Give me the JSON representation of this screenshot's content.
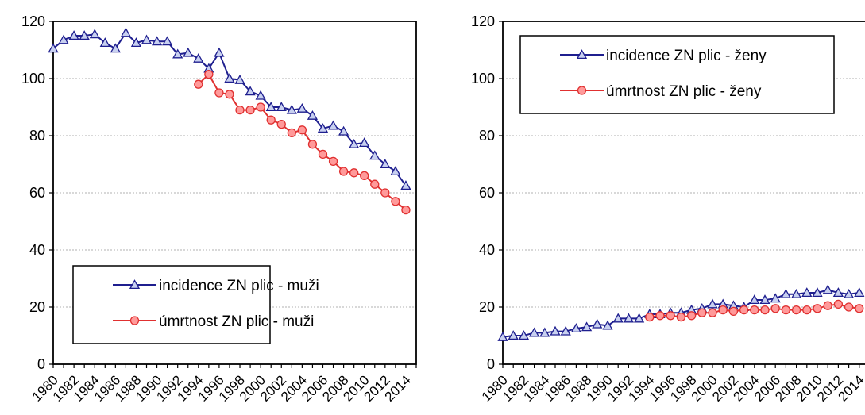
{
  "chart_data": [
    {
      "type": "line",
      "title": "",
      "xlabel": "",
      "ylabel": "",
      "ylim": [
        0,
        120
      ],
      "yticks": [
        0,
        20,
        40,
        60,
        80,
        100,
        120
      ],
      "xlim": [
        1980,
        2015
      ],
      "xtick_labels": [
        "1980",
        "1982",
        "1984",
        "1986",
        "1988",
        "1990",
        "1992",
        "1994",
        "1996",
        "1998",
        "2000",
        "2002",
        "2004",
        "2006",
        "2008",
        "2010",
        "2012",
        "2014"
      ],
      "grid": "horizontal",
      "legend_position": "bottom-center",
      "series": [
        {
          "name": "incidence ZN plic - muži",
          "color": "#1f1f8f",
          "marker": "triangle",
          "x": [
            1980,
            1981,
            1982,
            1983,
            1984,
            1985,
            1986,
            1987,
            1988,
            1989,
            1990,
            1991,
            1992,
            1993,
            1994,
            1995,
            1996,
            1997,
            1998,
            1999,
            2000,
            2001,
            2002,
            2003,
            2004,
            2005,
            2006,
            2007,
            2008,
            2009,
            2010,
            2011,
            2012,
            2013,
            2014
          ],
          "values": [
            110.5,
            113.5,
            115,
            115,
            115.5,
            112.5,
            110.5,
            116,
            112.5,
            113.5,
            113,
            113,
            108.5,
            109,
            107,
            103.5,
            109,
            100,
            99.5,
            95.5,
            94,
            90,
            90,
            89,
            89.5,
            87,
            82.5,
            83.5,
            81.5,
            77,
            77.5,
            73,
            70,
            67.5,
            62.5
          ]
        },
        {
          "name": "úmrtnost ZN plic - muži",
          "color": "#e03030",
          "marker": "circle",
          "x": [
            1994,
            1995,
            1996,
            1997,
            1998,
            1999,
            2000,
            2001,
            2002,
            2003,
            2004,
            2005,
            2006,
            2007,
            2008,
            2009,
            2010,
            2011,
            2012,
            2013,
            2014
          ],
          "values": [
            98,
            101.5,
            95,
            94.5,
            89,
            89,
            90,
            85.5,
            84,
            81,
            82,
            77,
            73.5,
            71,
            67.5,
            67,
            66,
            63,
            60,
            57,
            54
          ]
        }
      ]
    },
    {
      "type": "line",
      "title": "",
      "xlabel": "",
      "ylabel": "",
      "ylim": [
        0,
        120
      ],
      "yticks": [
        0,
        20,
        40,
        60,
        80,
        100,
        120
      ],
      "xlim": [
        1980,
        2015
      ],
      "xtick_labels": [
        "1980",
        "1982",
        "1984",
        "1986",
        "1988",
        "1990",
        "1992",
        "1994",
        "1996",
        "1998",
        "2000",
        "2002",
        "2004",
        "2006",
        "2008",
        "2010",
        "2012",
        "2014"
      ],
      "grid": "horizontal",
      "legend_position": "top-left",
      "series": [
        {
          "name": "incidence ZN plic - ženy",
          "color": "#1f1f8f",
          "marker": "triangle",
          "x": [
            1980,
            1981,
            1982,
            1983,
            1984,
            1985,
            1986,
            1987,
            1988,
            1989,
            1990,
            1991,
            1992,
            1993,
            1994,
            1995,
            1996,
            1997,
            1998,
            1999,
            2000,
            2001,
            2002,
            2003,
            2004,
            2005,
            2006,
            2007,
            2008,
            2009,
            2010,
            2011,
            2012,
            2013,
            2014
          ],
          "values": [
            9.5,
            10,
            10,
            11,
            11,
            11.5,
            11.5,
            12.5,
            13,
            14,
            13.5,
            16,
            16,
            16,
            17.5,
            17.5,
            18,
            18,
            19,
            19.5,
            21,
            21,
            20.5,
            20,
            22.5,
            22.5,
            23,
            24.5,
            24.5,
            25,
            25,
            26,
            25,
            24.5,
            25
          ]
        },
        {
          "name": "úmrtnost ZN plic - ženy",
          "color": "#e03030",
          "marker": "circle",
          "x": [
            1994,
            1995,
            1996,
            1997,
            1998,
            1999,
            2000,
            2001,
            2002,
            2003,
            2004,
            2005,
            2006,
            2007,
            2008,
            2009,
            2010,
            2011,
            2012,
            2013,
            2014
          ],
          "values": [
            16.5,
            17,
            17,
            16.5,
            17,
            18,
            18,
            19,
            18.5,
            19,
            19,
            19,
            19.5,
            19,
            19,
            19,
            19.5,
            20.5,
            21,
            20,
            19.5
          ]
        }
      ]
    }
  ]
}
